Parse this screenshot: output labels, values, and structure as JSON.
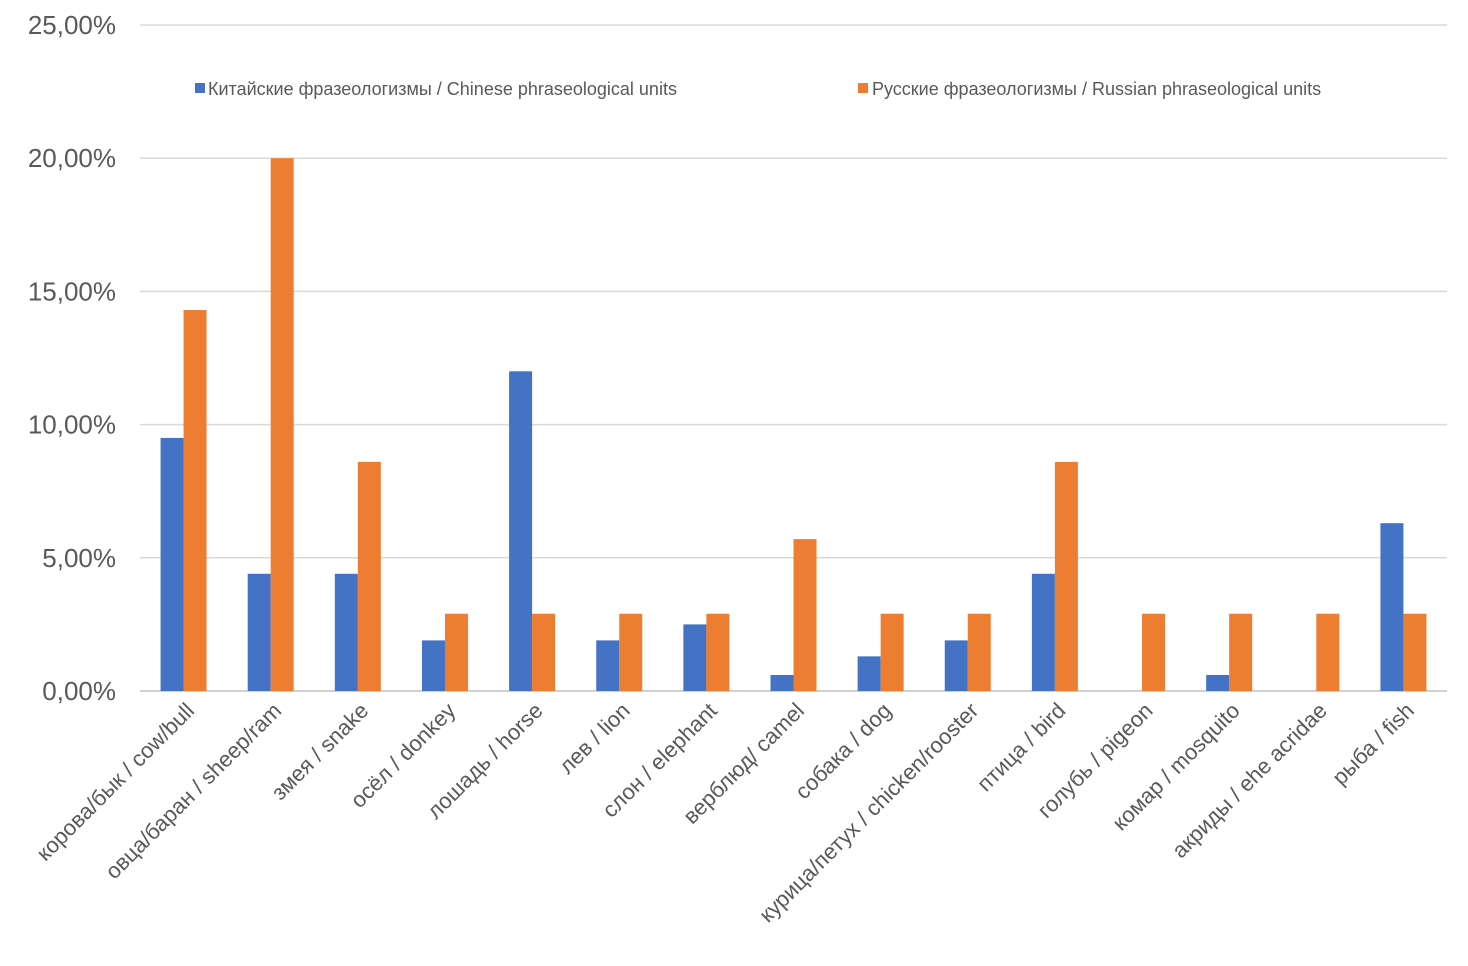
{
  "chart_data": {
    "type": "bar",
    "title": "",
    "xlabel": "",
    "ylabel": "",
    "ylim": [
      0,
      25
    ],
    "yticks": [
      "0,00%",
      "5,00%",
      "10,00%",
      "15,00%",
      "20,00%",
      "25,00%"
    ],
    "grid": true,
    "legend_position": "top",
    "categories": [
      "корова/бык / cow/bull",
      "овца/баран / sheep/ram",
      "змея / snake",
      "осёл / donkey",
      "лошадь / horse",
      "лев / lion",
      "слон / elephant",
      "верблюд/ camel",
      "собака / dog",
      "курица/петух / chicken/rooster",
      "птица / bird",
      "голубь / pigeon",
      "комар / mosquito",
      "акриды / ehe acridae",
      "рыба / fish"
    ],
    "series": [
      {
        "name": "Китайские фразеологизмы / Chinese phraseological units",
        "color": "#4472c4",
        "values": [
          9.5,
          4.4,
          4.4,
          1.9,
          12.0,
          1.9,
          2.5,
          0.6,
          1.3,
          1.9,
          4.4,
          0,
          0.6,
          0,
          6.3
        ]
      },
      {
        "name": "Русские фразеологизмы / Russian phraseological units",
        "color": "#ed7d31",
        "values": [
          14.3,
          20.0,
          8.6,
          2.9,
          2.9,
          2.9,
          2.9,
          5.7,
          2.9,
          2.9,
          8.6,
          2.9,
          2.9,
          2.9,
          2.9
        ]
      }
    ]
  }
}
